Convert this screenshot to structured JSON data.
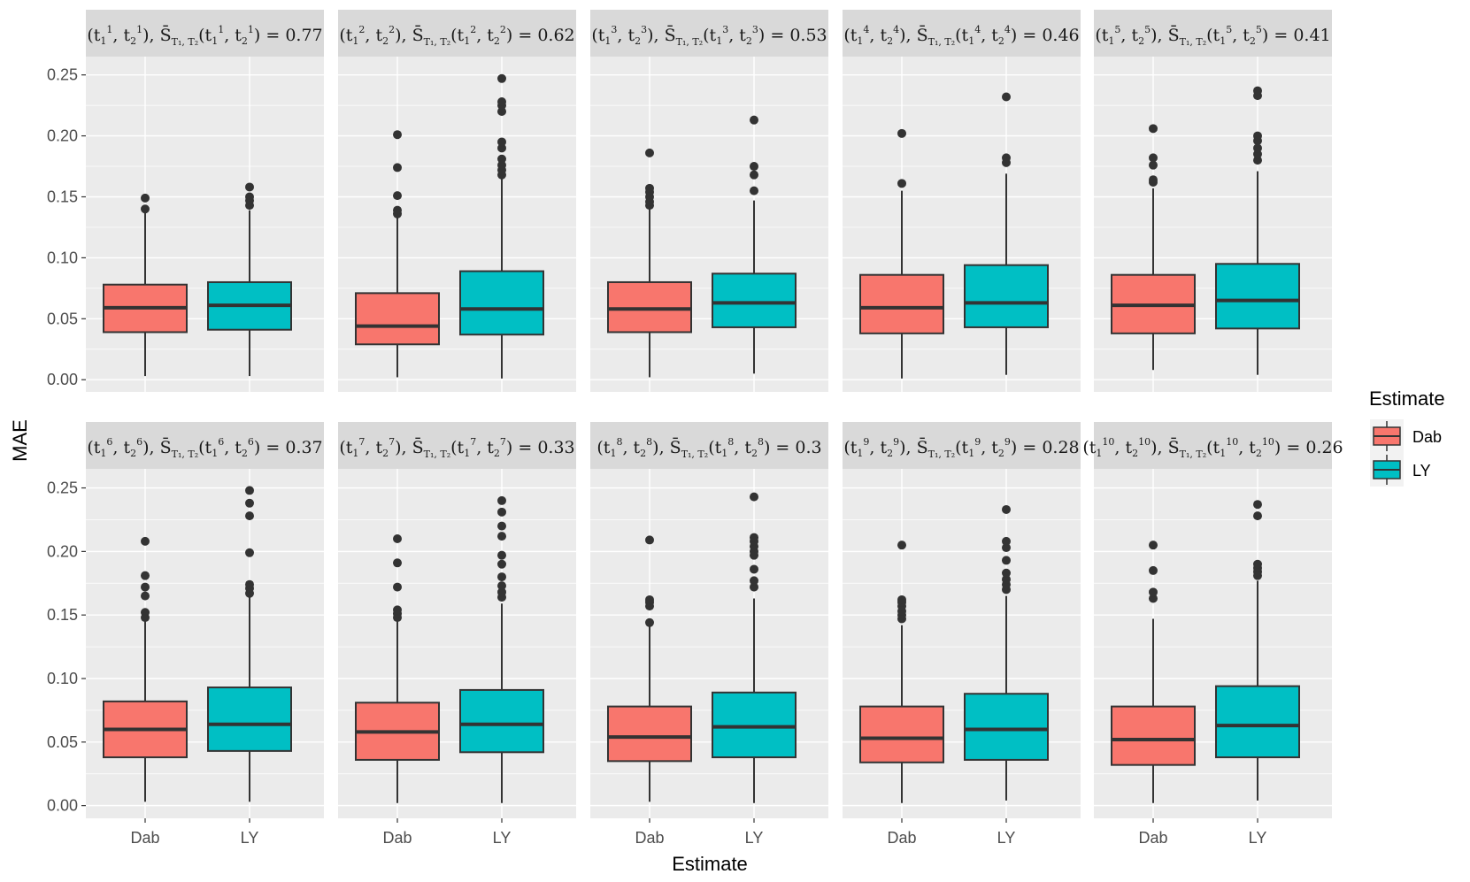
{
  "chart_data": {
    "type": "boxplot",
    "ylabel": "MAE",
    "xlabel": "Estimate",
    "ylim": [
      -0.01,
      0.265
    ],
    "yticks": [
      "0.00",
      "0.05",
      "0.10",
      "0.15",
      "0.20",
      "0.25"
    ],
    "ytick_values": [
      0.0,
      0.05,
      0.1,
      0.15,
      0.2,
      0.25
    ],
    "categories": [
      "Dab",
      "LY"
    ],
    "colors": {
      "Dab": "#f8766d",
      "LY": "#00bfc4"
    },
    "legend": {
      "title": "Estimate",
      "entries": [
        "Dab",
        "LY"
      ],
      "position": "right"
    },
    "panels": [
      {
        "idx": "1",
        "value": "0.77",
        "boxes": [
          {
            "estimate": "Dab",
            "min": 0.003,
            "q1": 0.039,
            "median": 0.059,
            "q3": 0.078,
            "max": 0.137,
            "outliers": [
              0.14,
              0.149
            ]
          },
          {
            "estimate": "LY",
            "min": 0.003,
            "q1": 0.041,
            "median": 0.061,
            "q3": 0.08,
            "max": 0.139,
            "outliers": [
              0.143,
              0.147,
              0.15,
              0.158
            ]
          }
        ]
      },
      {
        "idx": "2",
        "value": "0.62",
        "boxes": [
          {
            "estimate": "Dab",
            "min": 0.002,
            "q1": 0.029,
            "median": 0.044,
            "q3": 0.071,
            "max": 0.133,
            "outliers": [
              0.136,
              0.139,
              0.151,
              0.174,
              0.201
            ]
          },
          {
            "estimate": "LY",
            "min": 0.001,
            "q1": 0.037,
            "median": 0.058,
            "q3": 0.089,
            "max": 0.166,
            "outliers": [
              0.168,
              0.172,
              0.176,
              0.181,
              0.19,
              0.195,
              0.22,
              0.225,
              0.228,
              0.247
            ]
          }
        ]
      },
      {
        "idx": "3",
        "value": "0.53",
        "boxes": [
          {
            "estimate": "Dab",
            "min": 0.002,
            "q1": 0.039,
            "median": 0.058,
            "q3": 0.08,
            "max": 0.14,
            "outliers": [
              0.143,
              0.146,
              0.15,
              0.154,
              0.157,
              0.186
            ]
          },
          {
            "estimate": "LY",
            "min": 0.005,
            "q1": 0.043,
            "median": 0.063,
            "q3": 0.087,
            "max": 0.147,
            "outliers": [
              0.155,
              0.168,
              0.175,
              0.213
            ]
          }
        ]
      },
      {
        "idx": "4",
        "value": "0.46",
        "boxes": [
          {
            "estimate": "Dab",
            "min": 0.001,
            "q1": 0.038,
            "median": 0.059,
            "q3": 0.086,
            "max": 0.155,
            "outliers": [
              0.161,
              0.202
            ]
          },
          {
            "estimate": "LY",
            "min": 0.004,
            "q1": 0.043,
            "median": 0.063,
            "q3": 0.094,
            "max": 0.169,
            "outliers": [
              0.178,
              0.182,
              0.232
            ]
          }
        ]
      },
      {
        "idx": "5",
        "value": "0.41",
        "boxes": [
          {
            "estimate": "Dab",
            "min": 0.008,
            "q1": 0.038,
            "median": 0.061,
            "q3": 0.086,
            "max": 0.157,
            "outliers": [
              0.162,
              0.164,
              0.176,
              0.182,
              0.206
            ]
          },
          {
            "estimate": "LY",
            "min": 0.004,
            "q1": 0.042,
            "median": 0.065,
            "q3": 0.095,
            "max": 0.171,
            "outliers": [
              0.18,
              0.185,
              0.19,
              0.196,
              0.2,
              0.233,
              0.237
            ]
          }
        ]
      },
      {
        "idx": "6",
        "value": "0.37",
        "boxes": [
          {
            "estimate": "Dab",
            "min": 0.003,
            "q1": 0.038,
            "median": 0.06,
            "q3": 0.082,
            "max": 0.146,
            "outliers": [
              0.148,
              0.152,
              0.165,
              0.172,
              0.181,
              0.208
            ]
          },
          {
            "estimate": "LY",
            "min": 0.003,
            "q1": 0.043,
            "median": 0.064,
            "q3": 0.093,
            "max": 0.164,
            "outliers": [
              0.167,
              0.171,
              0.174,
              0.199,
              0.228,
              0.238,
              0.248
            ]
          }
        ]
      },
      {
        "idx": "7",
        "value": "0.33",
        "boxes": [
          {
            "estimate": "Dab",
            "min": 0.002,
            "q1": 0.036,
            "median": 0.058,
            "q3": 0.081,
            "max": 0.145,
            "outliers": [
              0.148,
              0.151,
              0.154,
              0.172,
              0.191,
              0.21
            ]
          },
          {
            "estimate": "LY",
            "min": 0.002,
            "q1": 0.042,
            "median": 0.064,
            "q3": 0.091,
            "max": 0.159,
            "outliers": [
              0.164,
              0.168,
              0.173,
              0.18,
              0.19,
              0.197,
              0.212,
              0.22,
              0.231,
              0.24
            ]
          }
        ]
      },
      {
        "idx": "8",
        "value": "0.3",
        "boxes": [
          {
            "estimate": "Dab",
            "min": 0.003,
            "q1": 0.035,
            "median": 0.054,
            "q3": 0.078,
            "max": 0.141,
            "outliers": [
              0.144,
              0.157,
              0.16,
              0.162,
              0.209
            ]
          },
          {
            "estimate": "LY",
            "min": 0.002,
            "q1": 0.038,
            "median": 0.062,
            "q3": 0.089,
            "max": 0.163,
            "outliers": [
              0.172,
              0.177,
              0.186,
              0.197,
              0.2,
              0.204,
              0.208,
              0.211,
              0.243
            ]
          }
        ]
      },
      {
        "idx": "9",
        "value": "0.28",
        "boxes": [
          {
            "estimate": "Dab",
            "min": 0.002,
            "q1": 0.034,
            "median": 0.053,
            "q3": 0.078,
            "max": 0.142,
            "outliers": [
              0.147,
              0.15,
              0.153,
              0.157,
              0.16,
              0.162,
              0.205
            ]
          },
          {
            "estimate": "LY",
            "min": 0.004,
            "q1": 0.036,
            "median": 0.06,
            "q3": 0.088,
            "max": 0.165,
            "outliers": [
              0.17,
              0.174,
              0.178,
              0.183,
              0.193,
              0.203,
              0.208,
              0.233
            ]
          }
        ]
      },
      {
        "idx": "10",
        "value": "0.26",
        "boxes": [
          {
            "estimate": "Dab",
            "min": 0.002,
            "q1": 0.032,
            "median": 0.052,
            "q3": 0.078,
            "max": 0.147,
            "outliers": [
              0.163,
              0.168,
              0.185,
              0.205
            ]
          },
          {
            "estimate": "LY",
            "min": 0.004,
            "q1": 0.038,
            "median": 0.063,
            "q3": 0.094,
            "max": 0.177,
            "outliers": [
              0.181,
              0.184,
              0.187,
              0.19,
              0.228,
              0.237
            ]
          }
        ]
      }
    ]
  }
}
